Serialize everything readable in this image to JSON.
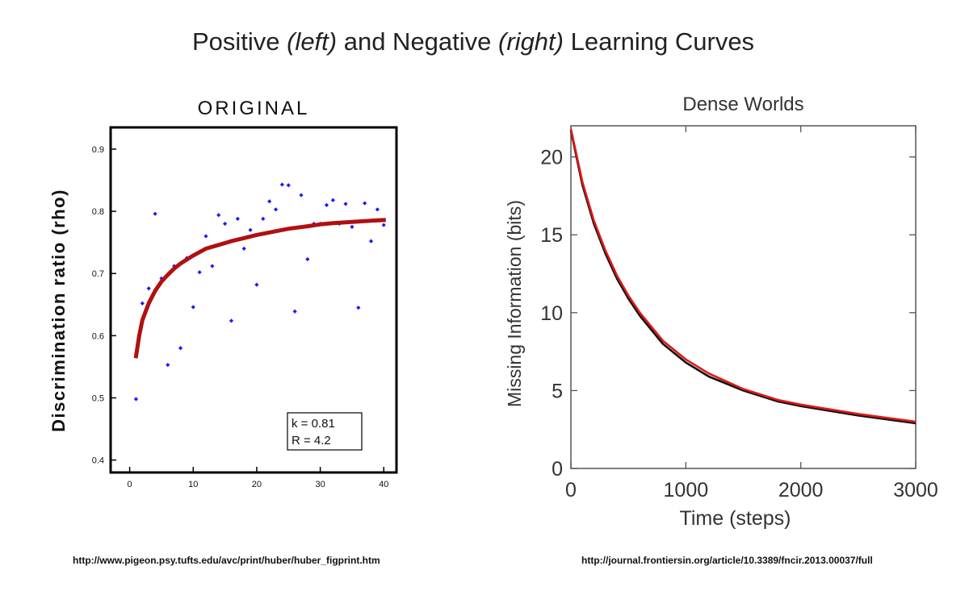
{
  "slide": {
    "title_part1": "Positive ",
    "title_left": "(left)",
    "title_part2": " and Negative ",
    "title_right": "(right)",
    "title_part3": " Learning Curves",
    "source_left": "http://www.pigeon.psy.tufts.edu/avc/print/huber/huber_figprint.htm",
    "source_right": "http://journal.frontiersin.org/article/10.3389/fncir.2013.00037/full"
  },
  "chart_data": [
    {
      "type": "scatter",
      "title": "ORIGINAL",
      "xlabel": "",
      "ylabel": "Discrimination ratio (rho)",
      "xlim": [
        -3,
        42
      ],
      "ylim": [
        0.38,
        0.935
      ],
      "xticks": [
        0,
        10,
        20,
        30,
        40
      ],
      "yticks": [
        0.4,
        0.5,
        0.6,
        0.7,
        0.8,
        0.9
      ],
      "xtick_labels": [
        "0",
        "10",
        "20",
        "30",
        "40"
      ],
      "ytick_labels": [
        "0.4",
        "0.5",
        "0.6",
        "0.7",
        "0.8",
        "0.9"
      ],
      "grid": false,
      "colors": {
        "points": "#1a1aff",
        "fit": "#b01010"
      },
      "annotation_lines": [
        "k = 0.81",
        "R = 4.2"
      ],
      "series": [
        {
          "kind": "points",
          "x": [
            1,
            2,
            3,
            4,
            5,
            6,
            7,
            8,
            9,
            10,
            11,
            12,
            13,
            14,
            15,
            16,
            17,
            18,
            19,
            20,
            21,
            22,
            23,
            24,
            25,
            26,
            27,
            28,
            29,
            30,
            31,
            32,
            33,
            34,
            35,
            36,
            37,
            38,
            39,
            40
          ],
          "y": [
            0.498,
            0.652,
            0.676,
            0.796,
            0.692,
            0.553,
            0.712,
            0.58,
            0.725,
            0.646,
            0.702,
            0.76,
            0.712,
            0.794,
            0.78,
            0.624,
            0.788,
            0.74,
            0.77,
            0.682,
            0.788,
            0.816,
            0.803,
            0.843,
            0.842,
            0.639,
            0.826,
            0.723,
            0.78,
            0.78,
            0.81,
            0.818,
            0.78,
            0.812,
            0.775,
            0.645,
            0.813,
            0.752,
            0.803,
            0.778
          ]
        },
        {
          "kind": "fit",
          "x": [
            1,
            1.5,
            2,
            3,
            4,
            5,
            6,
            7,
            8,
            10,
            12,
            14,
            16,
            18,
            20,
            22,
            25,
            28,
            30,
            32,
            35,
            38,
            40
          ],
          "y": [
            0.567,
            0.6,
            0.625,
            0.652,
            0.672,
            0.687,
            0.698,
            0.708,
            0.716,
            0.729,
            0.74,
            0.746,
            0.752,
            0.757,
            0.762,
            0.766,
            0.772,
            0.776,
            0.779,
            0.781,
            0.783,
            0.785,
            0.786
          ]
        }
      ]
    },
    {
      "type": "line",
      "title": "Dense Worlds",
      "xlabel": "Time (steps)",
      "ylabel": "Missing Information (bits)",
      "xlim": [
        0,
        3000
      ],
      "ylim": [
        0,
        22
      ],
      "xticks": [
        0,
        1000,
        2000,
        3000
      ],
      "yticks": [
        0,
        5,
        10,
        15,
        20
      ],
      "xtick_labels": [
        "0",
        "1000",
        "2000",
        "3000"
      ],
      "ytick_labels": [
        "0",
        "5",
        "10",
        "15",
        "20"
      ],
      "grid": false,
      "series": [
        {
          "color": "#111111",
          "x": [
            0,
            100,
            200,
            300,
            400,
            500,
            600,
            800,
            1000,
            1200,
            1500,
            1800,
            2000,
            2500,
            3000
          ],
          "y": [
            21.7,
            18.2,
            15.7,
            13.8,
            12.2,
            10.9,
            9.8,
            8.0,
            6.8,
            5.9,
            5.0,
            4.3,
            4.0,
            3.4,
            2.9
          ]
        },
        {
          "color": "#e01818",
          "x": [
            0,
            100,
            200,
            300,
            400,
            500,
            600,
            800,
            1000,
            1200,
            1500,
            1800,
            2000,
            2500,
            3000
          ],
          "y": [
            21.8,
            18.4,
            15.9,
            14.0,
            12.4,
            11.1,
            10.0,
            8.2,
            7.0,
            6.1,
            5.1,
            4.4,
            4.1,
            3.5,
            3.0
          ]
        }
      ]
    }
  ]
}
